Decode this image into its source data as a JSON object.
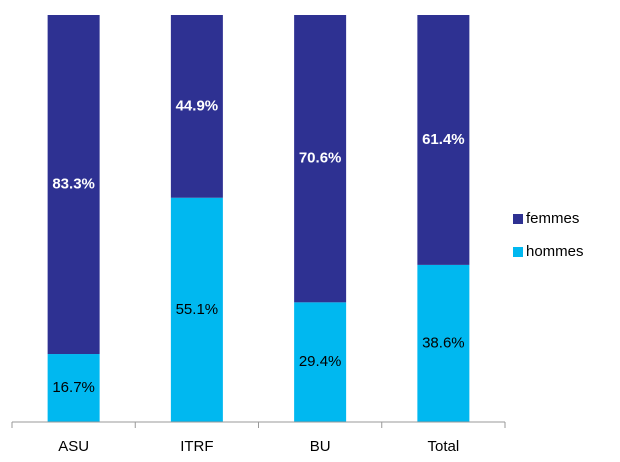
{
  "chart_data": {
    "type": "stacked_bar_100",
    "categories": [
      "ASU",
      "ITRF",
      "BU",
      "Total"
    ],
    "series": [
      {
        "name": "hommes",
        "color": "#00b8f0",
        "values": [
          16.7,
          55.1,
          29.4,
          38.6
        ],
        "value_labels": [
          "16.7%",
          "55.1%",
          "29.4%",
          "38.6%"
        ]
      },
      {
        "name": "femmes",
        "color": "#2e3192",
        "values": [
          83.3,
          44.9,
          70.6,
          61.4
        ],
        "value_labels": [
          "83.3%",
          "44.9%",
          "70.6%",
          "61.4%"
        ]
      }
    ],
    "legend": "right"
  }
}
